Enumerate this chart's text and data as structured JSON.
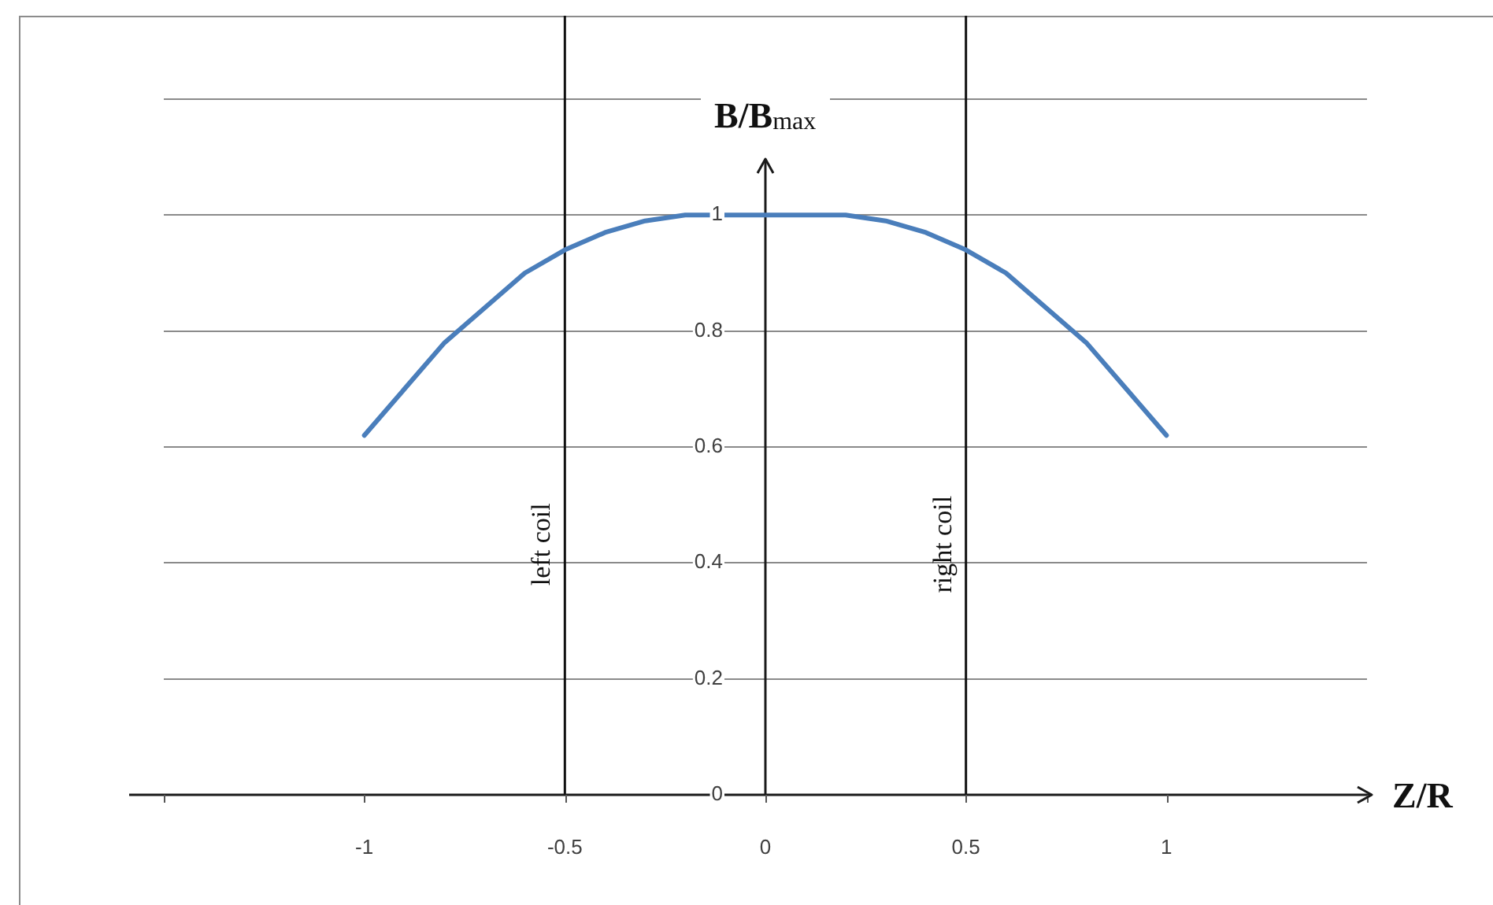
{
  "chart_data": {
    "type": "line",
    "xlabel": "Z/R",
    "ylabel": "B/B$_{max}$",
    "x": [
      -1,
      -0.9,
      -0.8,
      -0.7,
      -0.6,
      -0.5,
      -0.4,
      -0.3,
      -0.2,
      -0.1,
      0,
      0.1,
      0.2,
      0.3,
      0.4,
      0.5,
      0.6,
      0.7,
      0.8,
      0.9,
      1
    ],
    "series": [
      {
        "color": "#4a7ebb",
        "values": [
          0.62,
          0.7,
          0.78,
          0.84,
          0.9,
          0.94,
          0.97,
          0.99,
          1.0,
          1.0,
          1.0,
          1.0,
          1.0,
          0.99,
          0.97,
          0.94,
          0.9,
          0.84,
          0.78,
          0.7,
          0.62
        ]
      }
    ],
    "xlim": [
      -1.5,
      1.5
    ],
    "xticks": [
      {
        "value": -1.5,
        "label": null
      },
      -1,
      -0.5,
      0,
      0.5,
      1,
      {
        "value": 1.5,
        "label": null
      }
    ],
    "ylim": [
      0,
      1.2
    ],
    "yticks": [
      0,
      0.2,
      0.4,
      0.6,
      0.8,
      1,
      {
        "value": 1.2,
        "label": null
      }
    ],
    "ref_lines": [
      {
        "axis": "x",
        "value": -0.5,
        "label": "left coil"
      },
      {
        "axis": "x",
        "value": 0.5,
        "label": "right coil"
      }
    ],
    "grid": "y",
    "legend": false,
    "marker": "none",
    "line_style": "solid"
  }
}
